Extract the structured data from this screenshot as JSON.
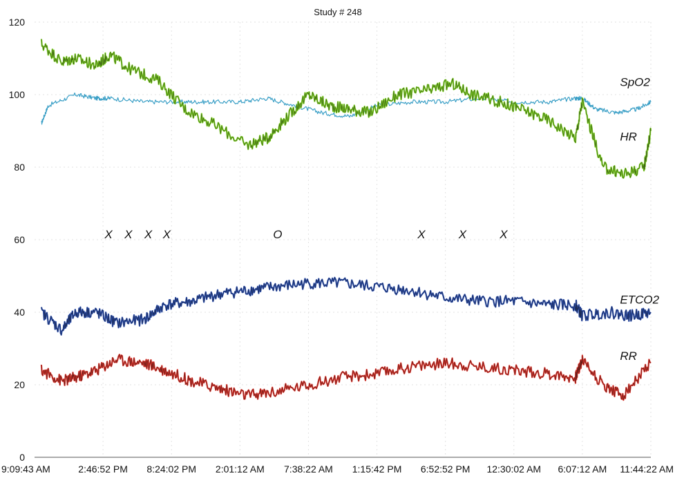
{
  "chart_data": {
    "type": "line",
    "title": "Study # 248",
    "ylim": [
      0,
      120
    ],
    "yticks": [
      0,
      20,
      40,
      60,
      80,
      100,
      120
    ],
    "xlim": [
      0,
      9
    ],
    "xticks": [
      "9:09:43 AM",
      "2:46:52 PM",
      "8:24:02 PM",
      "2:01:12 AM",
      "7:38:22 AM",
      "1:15:42 PM",
      "6:52:52 PM",
      "12:30:02 AM",
      "6:07:12 AM",
      "11:44:22 AM"
    ],
    "grid": true,
    "series": [
      {
        "name": "SpO2",
        "color": "#3a9fc6",
        "x": [
          0.1,
          0.2,
          0.6,
          0.9,
          1.1,
          1.6,
          2.1,
          2.5,
          3.0,
          3.4,
          3.8,
          4.2,
          4.6,
          5.0,
          5.5,
          6.0,
          6.5,
          7.0,
          7.5,
          7.9,
          8.0,
          8.2,
          8.5,
          8.8,
          9.0
        ],
        "y": [
          92,
          97,
          100,
          99,
          99,
          98,
          98,
          98,
          98,
          99,
          97,
          95,
          94,
          97,
          98,
          98,
          99,
          98,
          98,
          99,
          99,
          96,
          95,
          96,
          98
        ]
      },
      {
        "name": "HR",
        "color": "#7ed321",
        "x": [
          0.1,
          0.4,
          0.6,
          0.9,
          1.1,
          1.4,
          1.8,
          2.2,
          2.6,
          3.1,
          3.4,
          3.7,
          4.0,
          4.3,
          4.6,
          4.9,
          5.3,
          5.7,
          6.1,
          6.4,
          6.8,
          7.1,
          7.5,
          7.9,
          8.0,
          8.3,
          8.6,
          8.9,
          9.0
        ],
        "y": [
          114,
          109,
          110,
          108,
          111,
          107,
          104,
          96,
          92,
          86,
          88,
          94,
          100,
          97,
          96,
          95,
          100,
          101,
          103,
          100,
          98,
          96,
          93,
          88,
          98,
          80,
          78,
          80,
          90
        ]
      },
      {
        "name": "ETCO2",
        "color": "#2b4fb0",
        "x": [
          0.1,
          0.4,
          0.6,
          0.9,
          1.2,
          1.6,
          1.9,
          2.3,
          2.7,
          3.1,
          3.5,
          4.0,
          4.5,
          5.0,
          5.5,
          6.0,
          6.5,
          7.0,
          7.5,
          7.9,
          8.0,
          8.4,
          8.7,
          9.0
        ],
        "y": [
          40,
          35,
          40,
          40,
          37,
          38,
          42,
          43,
          45,
          46,
          47,
          48,
          48,
          47,
          46,
          44,
          43,
          43,
          42,
          42,
          39,
          40,
          39,
          40
        ]
      },
      {
        "name": "RR",
        "color": "#e0332a",
        "x": [
          0.1,
          0.4,
          0.6,
          0.9,
          1.2,
          1.6,
          1.9,
          2.3,
          2.7,
          3.1,
          3.5,
          4.0,
          4.5,
          5.0,
          5.5,
          6.0,
          6.5,
          7.0,
          7.5,
          7.9,
          8.0,
          8.3,
          8.6,
          9.0
        ],
        "y": [
          24,
          21,
          22,
          24,
          27,
          26,
          24,
          21,
          19,
          17,
          18,
          20,
          22,
          23,
          25,
          26,
          25,
          24,
          23,
          22,
          27,
          20,
          17,
          26
        ]
      }
    ],
    "annotations": [
      {
        "text": "SpO2",
        "x": 8.55,
        "y": 103.5
      },
      {
        "text": "HR",
        "x": 8.55,
        "y": 88.5
      },
      {
        "text": "ETCO2",
        "x": 8.55,
        "y": 43.5
      },
      {
        "text": "RR",
        "x": 8.55,
        "y": 28.0
      }
    ],
    "markers": [
      {
        "text": "X",
        "x": 1.08,
        "y": 61.5
      },
      {
        "text": "X",
        "x": 1.37,
        "y": 61.5
      },
      {
        "text": "X",
        "x": 1.66,
        "y": 61.5
      },
      {
        "text": "X",
        "x": 1.93,
        "y": 61.5
      },
      {
        "text": "O",
        "x": 3.55,
        "y": 61.5
      },
      {
        "text": "X",
        "x": 5.65,
        "y": 61.5
      },
      {
        "text": "X",
        "x": 6.25,
        "y": 61.5
      },
      {
        "text": "X",
        "x": 6.85,
        "y": 61.5
      }
    ]
  }
}
